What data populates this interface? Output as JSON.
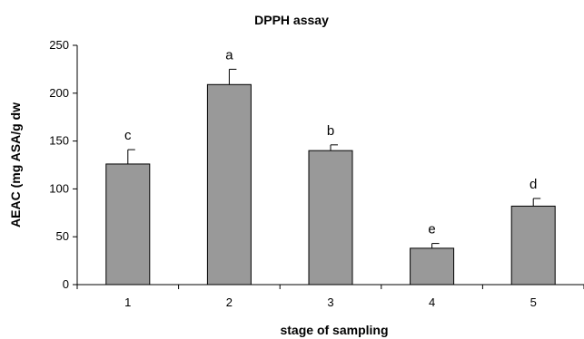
{
  "chart_data": {
    "type": "bar",
    "title": "DPPH assay",
    "xlabel": "stage of sampling",
    "ylabel": "AEAC (mg ASA/g dw",
    "categories": [
      "1",
      "2",
      "3",
      "4",
      "5"
    ],
    "values": [
      126,
      209,
      140,
      38,
      82
    ],
    "errors": [
      15,
      16,
      6,
      5,
      8
    ],
    "significance_letters": [
      "c",
      "a",
      "b",
      "e",
      "d"
    ],
    "yticks": [
      0,
      50,
      100,
      150,
      200,
      250
    ],
    "ylim": [
      0,
      250
    ],
    "grid": false,
    "legend": "none",
    "bar_color": "#999999",
    "bar_edge_color": "#000000"
  }
}
